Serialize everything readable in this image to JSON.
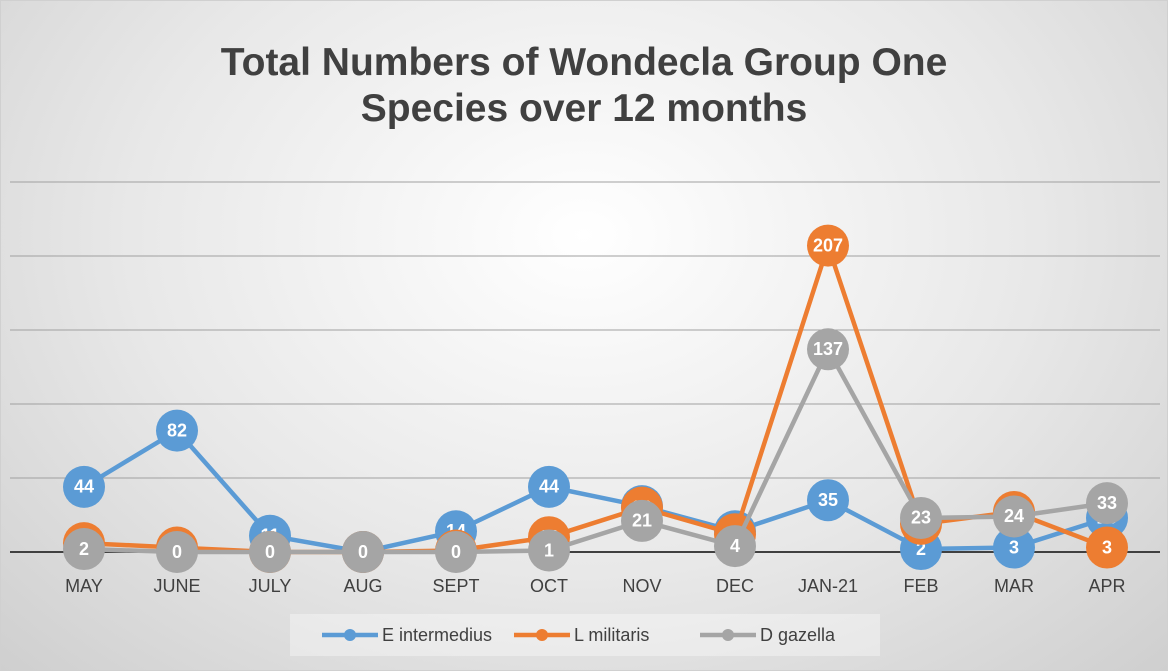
{
  "chart_data": {
    "type": "line",
    "title": "Total Numbers of Wondecla Group One Species over 12 months",
    "categories": [
      "MAY",
      "JUNE",
      "JULY",
      "AUG",
      "SEPT",
      "OCT",
      "NOV",
      "DEC",
      "JAN-21",
      "FEB",
      "MAR",
      "APR"
    ],
    "series": [
      {
        "name": "E intermedius",
        "color": "#5b9bd5",
        "values": [
          44,
          82,
          11,
          0,
          14,
          44,
          31,
          14,
          35,
          2,
          3,
          23
        ]
      },
      {
        "name": "L militaris",
        "color": "#ed7d31",
        "values": [
          6,
          3,
          0,
          0,
          1,
          10,
          30,
          12,
          207,
          19,
          27,
          3
        ]
      },
      {
        "name": "D gazella",
        "color": "#a5a5a5",
        "values": [
          2,
          0,
          0,
          0,
          0,
          1,
          21,
          4,
          137,
          23,
          24,
          33
        ]
      }
    ],
    "ylim": [
      0,
      250
    ],
    "yticks": [
      0,
      50,
      100,
      150,
      200,
      250
    ],
    "grid": true,
    "legend": "bottom"
  }
}
